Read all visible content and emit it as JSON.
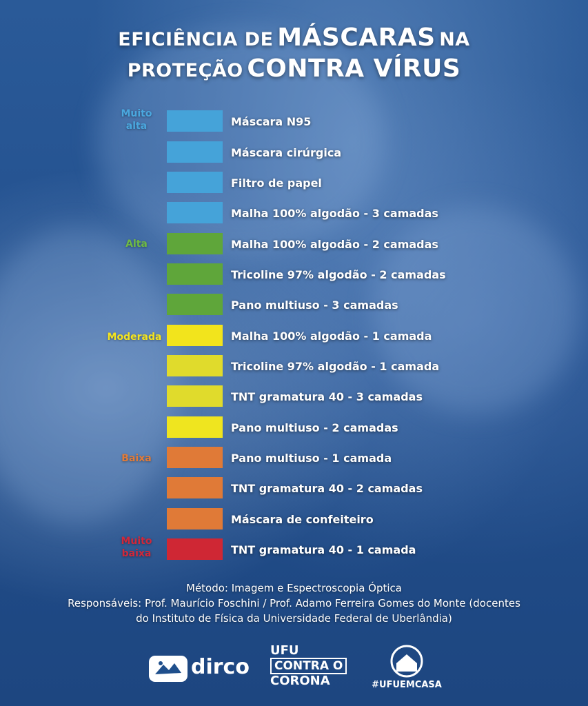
{
  "title": {
    "part1": "EFICIÊNCIA DE",
    "part2": "MÁSCARAS",
    "part3": "NA",
    "part4": "PROTEÇÃO",
    "part5": "CONTRA VÍRUS"
  },
  "levels": [
    {
      "text": "Muito alta",
      "color": "#4aa7de"
    },
    {
      "text": "Alta",
      "color": "#6fba44"
    },
    {
      "text": "Moderada",
      "color": "#f5e51e"
    },
    {
      "text": "Baixa",
      "color": "#e07b3a"
    },
    {
      "text": "Muito baixa",
      "color": "#d0283a"
    }
  ],
  "colors": {
    "blue": "#45a3d9",
    "green": "#5fa63a",
    "yellow": "#efe51f",
    "yellow2": "#e3dc2a",
    "orange": "#e07a37",
    "red": "#cf2734"
  },
  "items": [
    {
      "label": "Máscara N95",
      "color": "#45a3d9"
    },
    {
      "label": "Máscara cirúrgica",
      "color": "#45a3d9"
    },
    {
      "label": "Filtro de papel",
      "color": "#45a3d9"
    },
    {
      "label": "Malha 100% algodão - 3 camadas",
      "color": "#45a3d9"
    },
    {
      "label": "Malha 100% algodão - 2 camadas",
      "color": "#5fa63a"
    },
    {
      "label": "Tricoline 97% algodão - 2 camadas",
      "color": "#5fa63a"
    },
    {
      "label": "Pano multiuso - 3 camadas",
      "color": "#5fa63a"
    },
    {
      "label": "Malha 100% algodão - 1 camada",
      "color": "#f2e41c"
    },
    {
      "label": "Tricoline 97% algodão - 1 camada",
      "color": "#e0db2c"
    },
    {
      "label": "TNT gramatura 40 - 3 camadas",
      "color": "#e0db2c"
    },
    {
      "label": "Pano multiuso - 2 camadas",
      "color": "#efe51f"
    },
    {
      "label": "Pano multiuso - 1 camada",
      "color": "#e07a37"
    },
    {
      "label": "TNT gramatura 40 - 2 camadas",
      "color": "#e07a37"
    },
    {
      "label": "Máscara de confeiteiro",
      "color": "#e07a37"
    },
    {
      "label": "TNT gramatura 40 - 1 camada",
      "color": "#cf2734"
    }
  ],
  "footer": {
    "method": "Método: Imagem e Espectroscopia Óptica",
    "resp1": "Responsáveis: Prof. Maurício Foschini / Prof. Adamo Ferreira Gomes do Monte (docentes",
    "resp2": "do Instituto de Física da Universidade Federal de Uberlândia)"
  },
  "logos": {
    "dirco": "dirco",
    "ufu_line1": "UFU",
    "ufu_line2": "CONTRA O",
    "ufu_line3": "CORONA",
    "casa": "#UFUEMCASA"
  }
}
